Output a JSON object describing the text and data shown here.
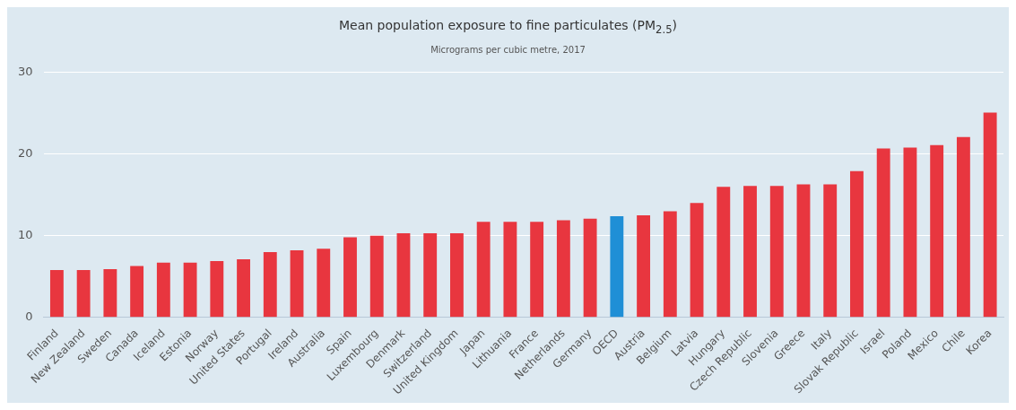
{
  "chart_data": {
    "type": "bar",
    "title": "Mean population exposure to fine particulates (PM$_{2.5}$)",
    "subtitle": "Micrograms per cubic metre, 2017",
    "categories": [
      "Finland",
      "New Zealand",
      "Sweden",
      "Canada",
      "Iceland",
      "Estonia",
      "Norway",
      "United States",
      "Portugal",
      "Ireland",
      "Australia",
      "Spain",
      "Luxembourg",
      "Denmark",
      "Switzerland",
      "United Kingdom",
      "Japan",
      "Lithuania",
      "France",
      "Netherlands",
      "Germany",
      "OECD",
      "Austria",
      "Belgium",
      "Latvia",
      "Hungary",
      "Czech Republic",
      "Slovenia",
      "Greece",
      "Italy",
      "Slovak Republic",
      "Israel",
      "Poland",
      "Mexico",
      "Chile",
      "Korea"
    ],
    "values": [
      5.8,
      5.8,
      5.9,
      6.3,
      6.7,
      6.7,
      6.9,
      7.1,
      8.0,
      8.2,
      8.4,
      9.8,
      10.0,
      10.3,
      10.3,
      10.3,
      11.7,
      11.7,
      11.7,
      11.9,
      12.1,
      12.4,
      12.5,
      13.0,
      14.0,
      16.0,
      16.1,
      16.1,
      16.3,
      16.3,
      17.9,
      20.7,
      20.8,
      21.1,
      22.1,
      25.1
    ],
    "colors": [
      "#e8363f",
      "#e8363f",
      "#e8363f",
      "#e8363f",
      "#e8363f",
      "#e8363f",
      "#e8363f",
      "#e8363f",
      "#e8363f",
      "#e8363f",
      "#e8363f",
      "#e8363f",
      "#e8363f",
      "#e8363f",
      "#e8363f",
      "#e8363f",
      "#e8363f",
      "#e8363f",
      "#e8363f",
      "#e8363f",
      "#e8363f",
      "#1f8fd6",
      "#e8363f",
      "#e8363f",
      "#e8363f",
      "#e8363f",
      "#e8363f",
      "#e8363f",
      "#e8363f",
      "#e8363f",
      "#e8363f",
      "#e8363f",
      "#e8363f",
      "#e8363f",
      "#e8363f",
      "#e8363f"
    ],
    "ylim": [
      0,
      30
    ],
    "yticks": [
      0,
      10,
      20,
      30
    ],
    "grid": "y",
    "legend": false
  }
}
